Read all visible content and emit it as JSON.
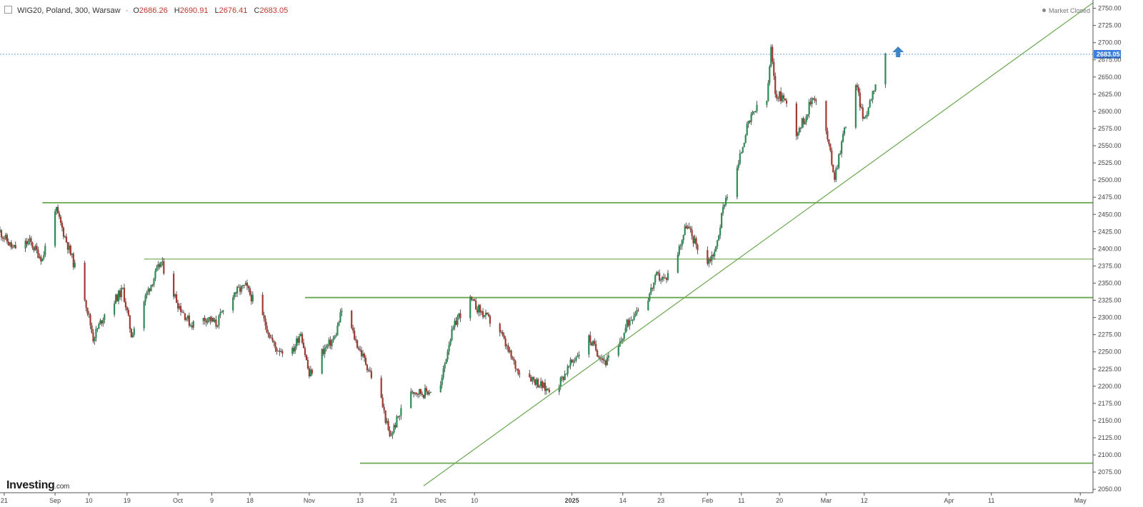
{
  "header": {
    "symbol": "WIG20, Poland, 300, Warsaw",
    "separator": "-",
    "open_label": "O",
    "open": "2686.26",
    "high_label": "H",
    "high": "2690.91",
    "low_label": "L",
    "low": "2676.41",
    "close_label": "C",
    "close": "2683.05"
  },
  "status": {
    "market": "Market Closed"
  },
  "brand": {
    "name": "Investing",
    "suffix": ".com"
  },
  "colors": {
    "up": "#2e8b57",
    "down": "#a33a32",
    "line": "#6aa84f",
    "lastPrice": "#3d7ede",
    "arrow": "#3d85c6"
  },
  "icons": {
    "arrow": "arrow-up-icon",
    "toggle": "chart-toggle-icon"
  },
  "chart_data": {
    "type": "candlestick",
    "instrument": "WIG20",
    "last_price": 2683.05,
    "last_price_label": "2683.05",
    "y_ticks": [
      2050,
      2075,
      2100,
      2125,
      2150,
      2175,
      2200,
      2225,
      2250,
      2275,
      2300,
      2325,
      2350,
      2375,
      2400,
      2425,
      2450,
      2475,
      2500,
      2525,
      2550,
      2575,
      2600,
      2625,
      2650,
      2675,
      2700,
      2725,
      2750
    ],
    "y_tick_labels": [
      "2050.00",
      "2075.00",
      "2100.00",
      "2125.00",
      "2150.00",
      "2175.00",
      "2200.00",
      "2225.00",
      "2250.00",
      "2275.00",
      "2300.00",
      "2325.00",
      "2350.00",
      "2375.00",
      "2400.00",
      "2425.00",
      "2450.00",
      "2475.00",
      "2500.00",
      "2525.00",
      "2550.00",
      "2575.00",
      "2600.00",
      "2625.00",
      "2650.00",
      "2675.00",
      "2700.00",
      "2725.00",
      "2750.00"
    ],
    "ylim": [
      2045,
      2762
    ],
    "x_ticks": [
      {
        "label": "21",
        "date": "2024-08-21"
      },
      {
        "label": "Sep",
        "date": "2024-09-02"
      },
      {
        "label": "10",
        "date": "2024-09-10"
      },
      {
        "label": "19",
        "date": "2024-09-19"
      },
      {
        "label": "Oct",
        "date": "2024-10-01"
      },
      {
        "label": "9",
        "date": "2024-10-09"
      },
      {
        "label": "18",
        "date": "2024-10-18"
      },
      {
        "label": "Nov",
        "date": "2024-11-01"
      },
      {
        "label": "13",
        "date": "2024-11-13"
      },
      {
        "label": "21",
        "date": "2024-11-21"
      },
      {
        "label": "Dec",
        "date": "2024-12-02"
      },
      {
        "label": "10",
        "date": "2024-12-10"
      },
      {
        "label": "2025",
        "date": "2025-01-02",
        "bold": true
      },
      {
        "label": "14",
        "date": "2025-01-14"
      },
      {
        "label": "23",
        "date": "2025-01-23"
      },
      {
        "label": "Feb",
        "date": "2025-02-03"
      },
      {
        "label": "11",
        "date": "2025-02-11"
      },
      {
        "label": "20",
        "date": "2025-02-20"
      },
      {
        "label": "Mar",
        "date": "2025-03-03"
      },
      {
        "label": "12",
        "date": "2025-03-12"
      },
      {
        "label": "Apr",
        "date": "2025-04-01"
      },
      {
        "label": "11",
        "date": "2025-04-11"
      },
      {
        "label": "May",
        "date": "2025-05-02"
      }
    ],
    "x_range_dates": [
      "2024-08-20",
      "2025-05-05"
    ],
    "horizontal_levels": [
      {
        "price": 2467,
        "from": "2024-08-30"
      },
      {
        "price": 2385,
        "from": "2024-09-23"
      },
      {
        "price": 2329,
        "from": "2024-10-31"
      },
      {
        "price": 2088,
        "from": "2024-11-13"
      }
    ],
    "trendline": {
      "from": {
        "date": "2024-11-28",
        "price": 2055
      },
      "to": {
        "date": "2025-05-05",
        "price": 2758
      }
    },
    "price_path": [
      {
        "date": "2024-08-20",
        "price": 2425
      },
      {
        "date": "2024-08-23",
        "price": 2400
      },
      {
        "date": "2024-08-27",
        "price": 2410
      },
      {
        "date": "2024-08-30",
        "price": 2385
      },
      {
        "date": "2024-09-02",
        "price": 2460
      },
      {
        "date": "2024-09-05",
        "price": 2405
      },
      {
        "date": "2024-09-09",
        "price": 2330
      },
      {
        "date": "2024-09-11",
        "price": 2270
      },
      {
        "date": "2024-09-14",
        "price": 2310
      },
      {
        "date": "2024-09-18",
        "price": 2340
      },
      {
        "date": "2024-09-20",
        "price": 2275
      },
      {
        "date": "2024-09-24",
        "price": 2340
      },
      {
        "date": "2024-09-27",
        "price": 2380
      },
      {
        "date": "2024-10-01",
        "price": 2320
      },
      {
        "date": "2024-10-04",
        "price": 2290
      },
      {
        "date": "2024-10-08",
        "price": 2300
      },
      {
        "date": "2024-10-10",
        "price": 2290
      },
      {
        "date": "2024-10-14",
        "price": 2335
      },
      {
        "date": "2024-10-17",
        "price": 2345
      },
      {
        "date": "2024-10-21",
        "price": 2300
      },
      {
        "date": "2024-10-24",
        "price": 2255
      },
      {
        "date": "2024-10-28",
        "price": 2250
      },
      {
        "date": "2024-10-30",
        "price": 2280
      },
      {
        "date": "2024-11-01",
        "price": 2215
      },
      {
        "date": "2024-11-04",
        "price": 2250
      },
      {
        "date": "2024-11-07",
        "price": 2270
      },
      {
        "date": "2024-11-09",
        "price": 2318
      },
      {
        "date": "2024-11-12",
        "price": 2265
      },
      {
        "date": "2024-11-15",
        "price": 2225
      },
      {
        "date": "2024-11-18",
        "price": 2180
      },
      {
        "date": "2024-11-20",
        "price": 2125
      },
      {
        "date": "2024-11-22",
        "price": 2155
      },
      {
        "date": "2024-11-25",
        "price": 2195
      },
      {
        "date": "2024-11-28",
        "price": 2190
      },
      {
        "date": "2024-12-02",
        "price": 2200
      },
      {
        "date": "2024-12-04",
        "price": 2265
      },
      {
        "date": "2024-12-06",
        "price": 2300
      },
      {
        "date": "2024-12-09",
        "price": 2325
      },
      {
        "date": "2024-12-12",
        "price": 2305
      },
      {
        "date": "2024-12-16",
        "price": 2280
      },
      {
        "date": "2024-12-18",
        "price": 2250
      },
      {
        "date": "2024-12-20",
        "price": 2225
      },
      {
        "date": "2024-12-23",
        "price": 2215
      },
      {
        "date": "2024-12-27",
        "price": 2195
      },
      {
        "date": "2024-12-30",
        "price": 2205
      },
      {
        "date": "2025-01-02",
        "price": 2235
      },
      {
        "date": "2025-01-06",
        "price": 2270
      },
      {
        "date": "2025-01-08",
        "price": 2250
      },
      {
        "date": "2025-01-10",
        "price": 2235
      },
      {
        "date": "2025-01-13",
        "price": 2255
      },
      {
        "date": "2025-01-15",
        "price": 2290
      },
      {
        "date": "2025-01-17",
        "price": 2310
      },
      {
        "date": "2025-01-20",
        "price": 2330
      },
      {
        "date": "2025-01-22",
        "price": 2360
      },
      {
        "date": "2025-01-24",
        "price": 2355
      },
      {
        "date": "2025-01-27",
        "price": 2395
      },
      {
        "date": "2025-01-29",
        "price": 2435
      },
      {
        "date": "2025-01-31",
        "price": 2410
      },
      {
        "date": "2025-02-03",
        "price": 2380
      },
      {
        "date": "2025-02-05",
        "price": 2400
      },
      {
        "date": "2025-02-07",
        "price": 2470
      },
      {
        "date": "2025-02-10",
        "price": 2515
      },
      {
        "date": "2025-02-12",
        "price": 2570
      },
      {
        "date": "2025-02-14",
        "price": 2600
      },
      {
        "date": "2025-02-17",
        "price": 2615
      },
      {
        "date": "2025-02-18",
        "price": 2690
      },
      {
        "date": "2025-02-19",
        "price": 2625
      },
      {
        "date": "2025-02-21",
        "price": 2620
      },
      {
        "date": "2025-02-24",
        "price": 2570
      },
      {
        "date": "2025-02-26",
        "price": 2590
      },
      {
        "date": "2025-02-28",
        "price": 2625
      },
      {
        "date": "2025-03-03",
        "price": 2570
      },
      {
        "date": "2025-03-05",
        "price": 2505
      },
      {
        "date": "2025-03-07",
        "price": 2565
      },
      {
        "date": "2025-03-10",
        "price": 2640
      },
      {
        "date": "2025-03-12",
        "price": 2585
      },
      {
        "date": "2025-03-14",
        "price": 2630
      },
      {
        "date": "2025-03-17",
        "price": 2683
      }
    ],
    "grid": false,
    "marker": {
      "type": "arrow-up",
      "date": "2025-03-20",
      "price": 2686
    }
  }
}
